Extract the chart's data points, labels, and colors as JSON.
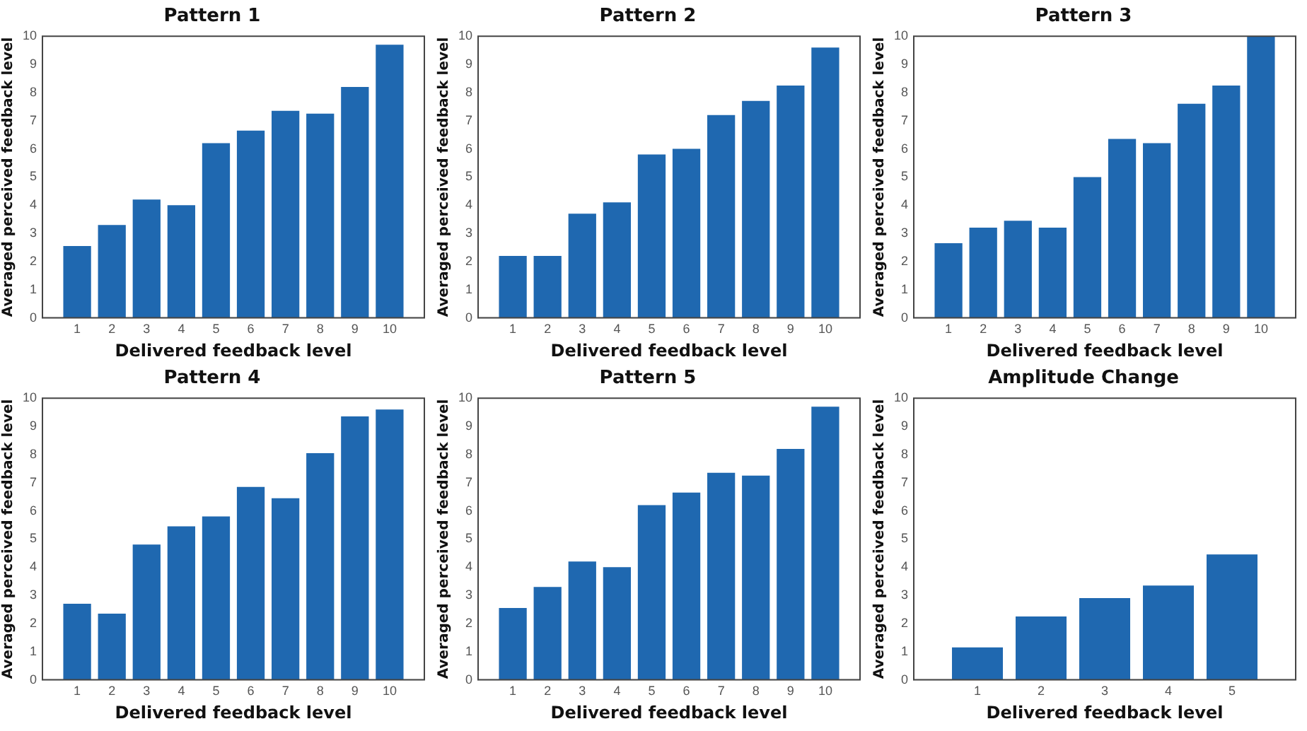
{
  "chart_data": [
    {
      "type": "bar",
      "title": "Pattern 1",
      "xlabel": "Delivered feedback level",
      "ylabel": "Averaged perceived feedback level",
      "categories": [
        "1",
        "2",
        "3",
        "4",
        "5",
        "6",
        "7",
        "8",
        "9",
        "10"
      ],
      "values": [
        2.55,
        3.3,
        4.2,
        4.0,
        6.2,
        6.65,
        7.35,
        7.25,
        8.2,
        9.7
      ],
      "color": "#1f68b0",
      "ylim": [
        0,
        10
      ],
      "yticks": [
        0,
        1,
        2,
        3,
        4,
        5,
        6,
        7,
        8,
        9,
        10
      ]
    },
    {
      "type": "bar",
      "title": "Pattern 2",
      "xlabel": "Delivered feedback level",
      "ylabel": "Averaged perceived feedback level",
      "categories": [
        "1",
        "2",
        "3",
        "4",
        "5",
        "6",
        "7",
        "8",
        "9",
        "10"
      ],
      "values": [
        2.2,
        2.2,
        3.7,
        4.1,
        5.8,
        6.0,
        7.2,
        7.7,
        8.25,
        9.6
      ],
      "color": "#1f68b0",
      "ylim": [
        0,
        10
      ],
      "yticks": [
        0,
        1,
        2,
        3,
        4,
        5,
        6,
        7,
        8,
        9,
        10
      ]
    },
    {
      "type": "bar",
      "title": "Pattern 3",
      "xlabel": "Delivered feedback level",
      "ylabel": "Averaged perceived feedback level",
      "categories": [
        "1",
        "2",
        "3",
        "4",
        "5",
        "6",
        "7",
        "8",
        "9",
        "10"
      ],
      "values": [
        2.65,
        3.2,
        3.45,
        3.2,
        5.0,
        6.35,
        6.2,
        7.6,
        8.25,
        10
      ],
      "color": "#1f68b0",
      "ylim": [
        0,
        10
      ],
      "yticks": [
        0,
        1,
        2,
        3,
        4,
        5,
        6,
        7,
        8,
        9,
        10
      ]
    },
    {
      "type": "bar",
      "title": "Pattern 4",
      "xlabel": "Delivered feedback level",
      "ylabel": "Averaged perceived feedback level",
      "categories": [
        "1",
        "2",
        "3",
        "4",
        "5",
        "6",
        "7",
        "8",
        "9",
        "10"
      ],
      "values": [
        2.7,
        2.35,
        4.8,
        5.45,
        5.8,
        6.85,
        6.45,
        8.05,
        9.35,
        9.6
      ],
      "color": "#1f68b0",
      "ylim": [
        0,
        10
      ],
      "yticks": [
        0,
        1,
        2,
        3,
        4,
        5,
        6,
        7,
        8,
        9,
        10
      ]
    },
    {
      "type": "bar",
      "title": "Pattern 5",
      "xlabel": "Delivered feedback level",
      "ylabel": "Averaged perceived feedback level",
      "categories": [
        "1",
        "2",
        "3",
        "4",
        "5",
        "6",
        "7",
        "8",
        "9",
        "10"
      ],
      "values": [
        2.55,
        3.3,
        4.2,
        4.0,
        6.2,
        6.65,
        7.35,
        7.25,
        8.2,
        9.7
      ],
      "color": "#1f68b0",
      "ylim": [
        0,
        10
      ],
      "yticks": [
        0,
        1,
        2,
        3,
        4,
        5,
        6,
        7,
        8,
        9,
        10
      ]
    },
    {
      "type": "bar",
      "title": "Amplitude Change",
      "xlabel": "Delivered feedback level",
      "ylabel": "Averaged perceived feedback level",
      "categories": [
        "1",
        "2",
        "3",
        "4",
        "5"
      ],
      "values": [
        1.15,
        2.25,
        2.9,
        3.35,
        4.45
      ],
      "color": "#1f68b0",
      "ylim": [
        0,
        10
      ],
      "yticks": [
        0,
        1,
        2,
        3,
        4,
        5,
        6,
        7,
        8,
        9,
        10
      ]
    }
  ]
}
